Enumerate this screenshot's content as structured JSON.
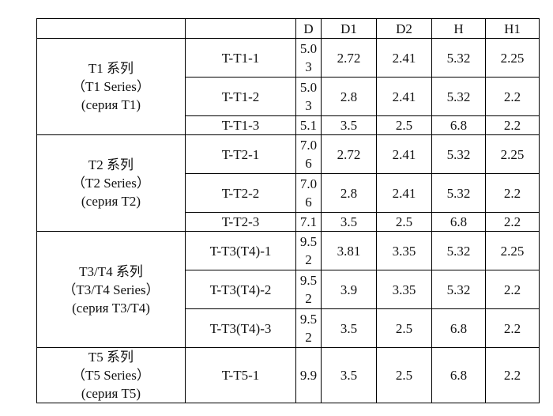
{
  "header": {
    "series": "",
    "model": "",
    "D": "D",
    "D1": "D1",
    "D2": "D2",
    "H": "H",
    "H1": "H1"
  },
  "groups": [
    {
      "name_cn": "T1 系列",
      "name_en": "（T1 Series）",
      "name_ru": "(серия T1)",
      "rows": [
        {
          "model": "T-T1-1",
          "D": "5.03",
          "D1": "2.72",
          "D2": "2.41",
          "H": "5.32",
          "H1": "2.25"
        },
        {
          "model": "T-T1-2",
          "D": "5.03",
          "D1": "2.8",
          "D2": "2.41",
          "H": "5.32",
          "H1": "2.2"
        },
        {
          "model": "T-T1-3",
          "D": "5.1",
          "D1": "3.5",
          "D2": "2.5",
          "H": "6.8",
          "H1": "2.2"
        }
      ]
    },
    {
      "name_cn": "T2 系列",
      "name_en": "（T2 Series）",
      "name_ru": "(серия T2)",
      "rows": [
        {
          "model": "T-T2-1",
          "D": "7.06",
          "D1": "2.72",
          "D2": "2.41",
          "H": "5.32",
          "H1": "2.25"
        },
        {
          "model": "T-T2-2",
          "D": "7.06",
          "D1": "2.8",
          "D2": "2.41",
          "H": "5.32",
          "H1": "2.2"
        },
        {
          "model": "T-T2-3",
          "D": "7.1",
          "D1": "3.5",
          "D2": "2.5",
          "H": "6.8",
          "H1": "2.2"
        }
      ]
    },
    {
      "name_cn": "T3/T4 系列",
      "name_en": "（T3/T4 Series）",
      "name_ru": "(серия T3/T4)",
      "rows": [
        {
          "model": "T-T3(T4)-1",
          "D": "9.52",
          "D1": "3.81",
          "D2": "3.35",
          "H": "5.32",
          "H1": "2.25"
        },
        {
          "model": "T-T3(T4)-2",
          "D": "9.52",
          "D1": "3.9",
          "D2": "3.35",
          "H": "5.32",
          "H1": "2.2"
        },
        {
          "model": "T-T3(T4)-3",
          "D": "9.52",
          "D1": "3.5",
          "D2": "2.5",
          "H": "6.8",
          "H1": "2.2"
        }
      ]
    },
    {
      "name_cn": "T5 系列",
      "name_en": "（T5 Series）",
      "name_ru": "(серия T5)",
      "rows": [
        {
          "model": "T-T5-1",
          "D": "9.9",
          "D1": "3.5",
          "D2": "2.5",
          "H": "6.8",
          "H1": "2.2"
        }
      ]
    }
  ]
}
